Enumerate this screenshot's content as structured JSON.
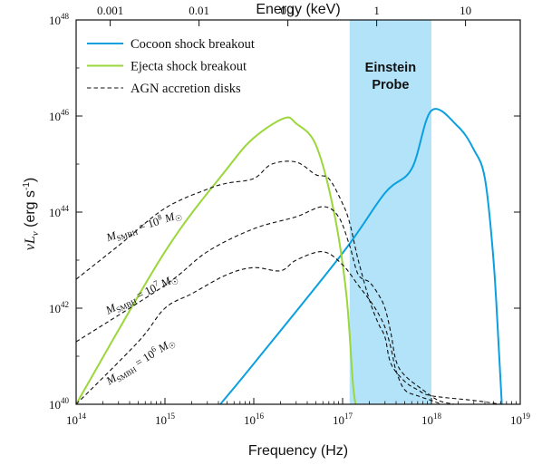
{
  "chart_data": {
    "type": "line",
    "xlabel": "Frequency (Hz)",
    "x2label": "Energy (keV)",
    "ylabel": "νL_ν (erg s^-1)",
    "x_scale": "log",
    "y_scale": "log",
    "xlim": [
      100000000000000.0,
      1e+19
    ],
    "ylim": [
      1e+40,
      1e+48
    ],
    "x_ticks": [
      {
        "value": 100000000000000.0,
        "base": "10",
        "exp": "14"
      },
      {
        "value": 1000000000000000.0,
        "base": "10",
        "exp": "15"
      },
      {
        "value": 1e+16,
        "base": "10",
        "exp": "16"
      },
      {
        "value": 1e+17,
        "base": "10",
        "exp": "17"
      },
      {
        "value": 1e+18,
        "base": "10",
        "exp": "18"
      },
      {
        "value": 1e+19,
        "base": "10",
        "exp": "19"
      }
    ],
    "y_ticks": [
      {
        "value": 1e+40,
        "base": "10",
        "exp": "40"
      },
      {
        "value": 1e+42,
        "base": "10",
        "exp": "42"
      },
      {
        "value": 1e+44,
        "base": "10",
        "exp": "44"
      },
      {
        "value": 1e+46,
        "base": "10",
        "exp": "46"
      },
      {
        "value": 1e+48,
        "base": "10",
        "exp": "48"
      }
    ],
    "x2_ticks": [
      {
        "label": "0.001",
        "freq": 242000000000000.0
      },
      {
        "label": "0.01",
        "freq": 2420000000000000.0
      },
      {
        "label": "0.1",
        "freq": 2.42e+16
      },
      {
        "label": "1",
        "freq": 2.42e+17
      },
      {
        "label": "10",
        "freq": 2.42e+18
      }
    ],
    "band": {
      "label_lines": [
        "Einstein",
        "Probe"
      ],
      "x_range": [
        1.2e+17,
        1e+18
      ],
      "color": "#b3e3f9"
    },
    "legend": {
      "position": "top-left"
    },
    "series": [
      {
        "name": "Cocoon shock breakout",
        "color": "#0aa0e0",
        "style": "solid",
        "points": [
          [
            4200000000000000.0,
            1e+40
          ],
          [
            1e+16,
            7e+40
          ],
          [
            1e+17,
            1.4e+43
          ],
          [
            3e+17,
            2.5e+44
          ],
          [
            6e+17,
            8e+44
          ],
          [
            1e+18,
            1.3e+46
          ],
          [
            2e+18,
            6e+45
          ],
          [
            3e+18,
            2e+45
          ],
          [
            4e+18,
            5e+44
          ],
          [
            5e+18,
            1e+43
          ],
          [
            5.8e+18,
            1e+41
          ],
          [
            6.2e+18,
            1e+40
          ]
        ]
      },
      {
        "name": "Ejecta shock breakout",
        "color": "#9ad73a",
        "style": "solid",
        "points": [
          [
            100000000000000.0,
            1e+40
          ],
          [
            1000000000000000.0,
            1.5e+43
          ],
          [
            5000000000000000.0,
            8e+44
          ],
          [
            1e+16,
            3.5e+45
          ],
          [
            2.2e+16,
            9e+45
          ],
          [
            3e+16,
            7e+45
          ],
          [
            5e+16,
            2.5e+45
          ],
          [
            8e+16,
            1e+44
          ],
          [
            1.1e+17,
            2e+42
          ],
          [
            1.3e+17,
            3e+40
          ],
          [
            1.4e+17,
            1e+40
          ]
        ]
      },
      {
        "name": "AGN accretion disks",
        "color": "#111111",
        "style": "dashed",
        "label": {
          "base": "M",
          "sub": "SMBH",
          "rel": " = 10",
          "exp": "8",
          "unit": "M",
          "unit_sub": "☉"
        },
        "points": [
          [
            100000000000000.0,
            4e+42
          ],
          [
            300000000000000.0,
            2e+43
          ],
          [
            1000000000000000.0,
            1.2e+44
          ],
          [
            3000000000000000.0,
            3e+44
          ],
          [
            5000000000000000.0,
            4e+44
          ],
          [
            1e+16,
            5e+44
          ],
          [
            1.6e+16,
            1e+45
          ],
          [
            3e+16,
            1.1e+45
          ],
          [
            5e+16,
            6e+44
          ],
          [
            7e+16,
            5e+44
          ],
          [
            1e+17,
            1.5e+44
          ],
          [
            1.2e+17,
            6e+43
          ],
          [
            1.5e+17,
            1e+43
          ],
          [
            2e+17,
            1.5e+42
          ],
          [
            2.5e+17,
            5e+41
          ],
          [
            3e+17,
            2.5e+41
          ],
          [
            3.5e+17,
            7e+40
          ],
          [
            5e+17,
            3e+40
          ],
          [
            7e+17,
            2e+40
          ],
          [
            1e+18,
            1.5e+40
          ],
          [
            3e+18,
            1.2e+40
          ],
          [
            6e+18,
            1e+40
          ]
        ]
      },
      {
        "name": "",
        "color": "#111111",
        "style": "dashed",
        "label": {
          "base": "M",
          "sub": "SMBH",
          "rel": " = 10",
          "exp": "7",
          "unit": "M",
          "unit_sub": "☉"
        },
        "points": [
          [
            100000000000000.0,
            2e+41
          ],
          [
            1000000000000000.0,
            3e+42
          ],
          [
            3000000000000000.0,
            1.5e+43
          ],
          [
            1e+16,
            4.5e+43
          ],
          [
            3e+16,
            8e+43
          ],
          [
            6e+16,
            1.3e+44
          ],
          [
            9e+16,
            8e+43
          ],
          [
            1.2e+17,
            2e+43
          ],
          [
            1.5e+17,
            5e+42
          ],
          [
            2e+17,
            3.5e+42
          ],
          [
            2.5e+17,
            2e+42
          ],
          [
            3e+17,
            1e+42
          ],
          [
            3.5e+17,
            3e+41
          ],
          [
            4e+17,
            8e+40
          ],
          [
            5e+17,
            4e+40
          ],
          [
            8e+17,
            2e+40
          ],
          [
            1.2e+18,
            1.2e+40
          ],
          [
            1.8e+18,
            1e+40
          ]
        ]
      },
      {
        "name": "",
        "color": "#111111",
        "style": "dashed",
        "label": {
          "base": "M",
          "sub": "SMBH",
          "rel": " = 10",
          "exp": "6",
          "unit": "M",
          "unit_sub": "☉"
        },
        "points": [
          [
            100000000000000.0,
            1e+40
          ],
          [
            500000000000000.0,
            2e+41
          ],
          [
            1000000000000000.0,
            1e+42
          ],
          [
            2000000000000000.0,
            2e+42
          ],
          [
            5000000000000000.0,
            5e+42
          ],
          [
            1e+16,
            7e+42
          ],
          [
            2e+16,
            6e+42
          ],
          [
            3e+16,
            1e+43
          ],
          [
            6e+16,
            1.5e+43
          ],
          [
            1e+17,
            8e+42
          ],
          [
            1.5e+17,
            3e+42
          ],
          [
            2e+17,
            1.5e+42
          ],
          [
            2.5e+17,
            8e+41
          ],
          [
            3e+17,
            4e+41
          ],
          [
            3.5e+17,
            1.5e+41
          ],
          [
            4e+17,
            5e+40
          ],
          [
            5e+17,
            2e+40
          ],
          [
            7e+17,
            1.5e+40
          ],
          [
            1e+18,
            1.2e+40
          ],
          [
            1.3e+18,
            1e+40
          ]
        ]
      }
    ]
  }
}
